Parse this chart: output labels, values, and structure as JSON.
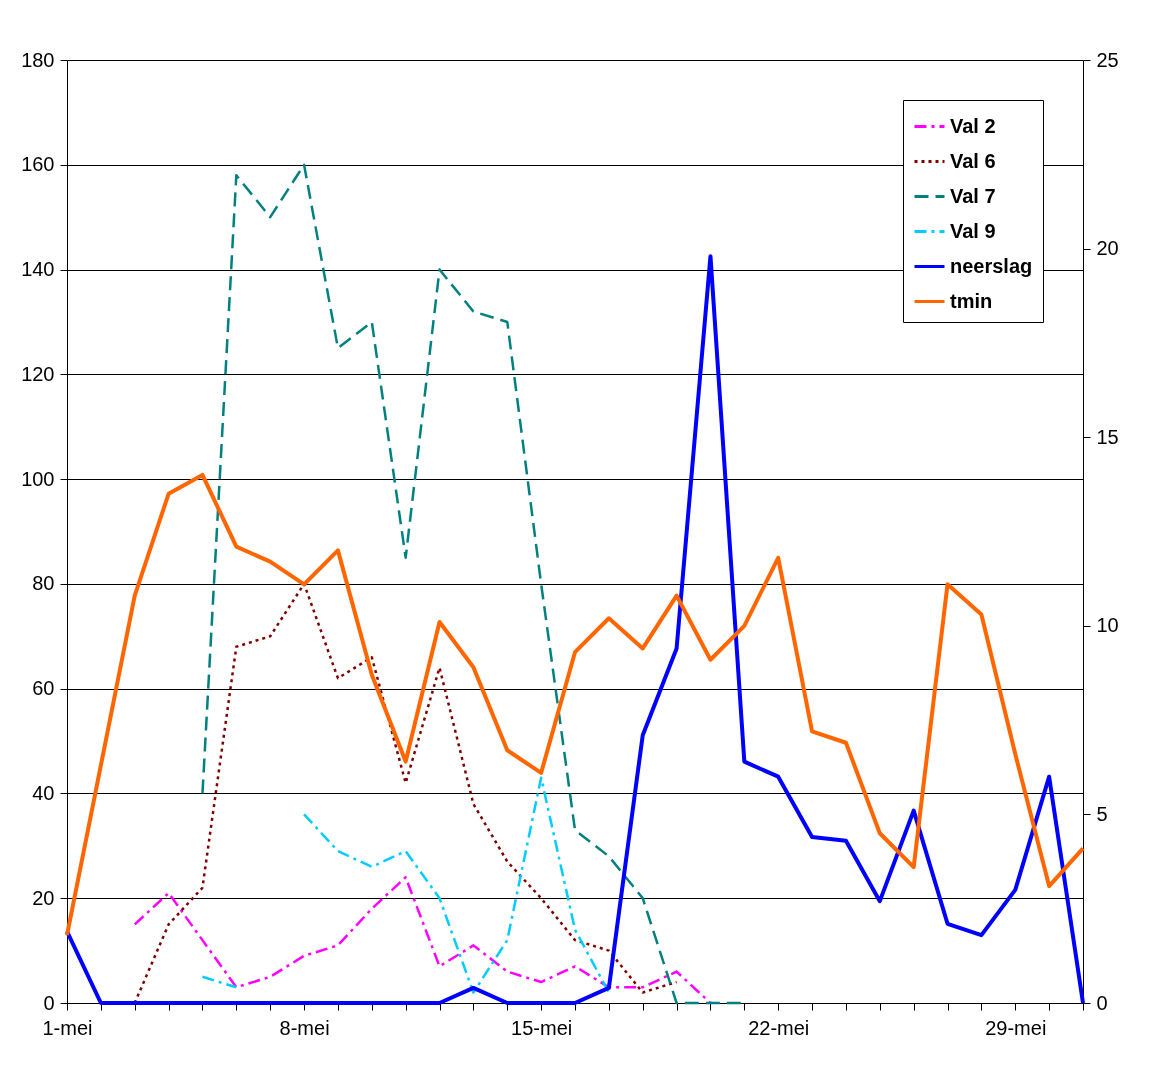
{
  "chart_data": {
    "type": "line",
    "categories": [
      "1-mei",
      null,
      null,
      null,
      null,
      null,
      null,
      "8-mei",
      null,
      null,
      null,
      null,
      null,
      null,
      "15-mei",
      null,
      null,
      null,
      null,
      null,
      null,
      "22-mei",
      null,
      null,
      null,
      null,
      null,
      null,
      "29-mei",
      null,
      null
    ],
    "ylim": [
      0,
      180
    ],
    "yticks": [
      0,
      20,
      40,
      60,
      80,
      100,
      120,
      140,
      160,
      180
    ],
    "y2lim": [
      0,
      25
    ],
    "y2ticks": [
      0,
      5,
      10,
      15,
      20,
      25
    ],
    "grid": "y",
    "legend": "top right",
    "series": [
      {
        "name": "Val 2",
        "color": "#ff00ff",
        "line_style": "dashdot",
        "values": [
          null,
          null,
          15,
          21,
          12,
          3,
          5,
          9,
          11,
          18,
          24,
          7,
          11,
          6,
          4,
          7,
          3,
          3,
          6,
          0,
          null,
          null,
          null,
          null,
          null,
          null,
          null,
          null,
          null,
          null,
          null
        ]
      },
      {
        "name": "Val 6",
        "color": "#800000",
        "line_style": "dotted",
        "values": [
          null,
          null,
          0,
          15,
          22,
          68,
          70,
          80,
          62,
          66,
          42,
          64,
          38,
          27,
          20,
          12,
          10,
          2,
          4,
          null,
          null,
          null,
          null,
          null,
          null,
          null,
          null,
          null,
          null,
          null,
          null
        ]
      },
      {
        "name": "Val 7",
        "color": "#008080",
        "line_style": "dashed",
        "values": [
          null,
          null,
          null,
          null,
          40,
          158,
          150,
          160,
          125,
          130,
          85,
          140,
          132,
          130,
          80,
          33,
          28,
          20,
          0,
          0,
          0,
          null,
          null,
          null,
          null,
          null,
          null,
          null,
          null,
          null,
          null
        ]
      },
      {
        "name": "Val 9",
        "color": "#00ccff",
        "line_style": "dashdot",
        "values": [
          null,
          null,
          null,
          null,
          5,
          3,
          null,
          36,
          29,
          26,
          29,
          20,
          2,
          12,
          43,
          14,
          2,
          null,
          null,
          null,
          null,
          null,
          null,
          null,
          null,
          null,
          null,
          null,
          null,
          null,
          null
        ]
      },
      {
        "name": "neerslag",
        "color": "#0000ff",
        "line_style": "solid",
        "axis": "y2",
        "values": [
          1.9,
          0,
          0,
          0,
          0,
          0,
          0,
          0,
          0,
          0,
          0,
          0,
          0.4,
          0,
          0,
          0,
          0.4,
          7.1,
          9.4,
          19.8,
          6.4,
          6.0,
          4.4,
          4.3,
          2.7,
          5.1,
          2.1,
          1.8,
          3.0,
          6.0,
          0
        ]
      },
      {
        "name": "tmin",
        "color": "#ff6600",
        "line_style": "solid",
        "axis": "y2",
        "values": [
          1.8,
          6.3,
          10.8,
          13.5,
          14.0,
          12.1,
          11.7,
          11.1,
          12.0,
          8.7,
          6.4,
          10.1,
          8.9,
          6.7,
          6.1,
          9.3,
          10.2,
          9.4,
          10.8,
          9.1,
          10.0,
          11.8,
          7.2,
          6.9,
          4.5,
          3.6,
          11.1,
          10.3,
          6.6,
          3.1,
          4.1
        ]
      }
    ]
  }
}
